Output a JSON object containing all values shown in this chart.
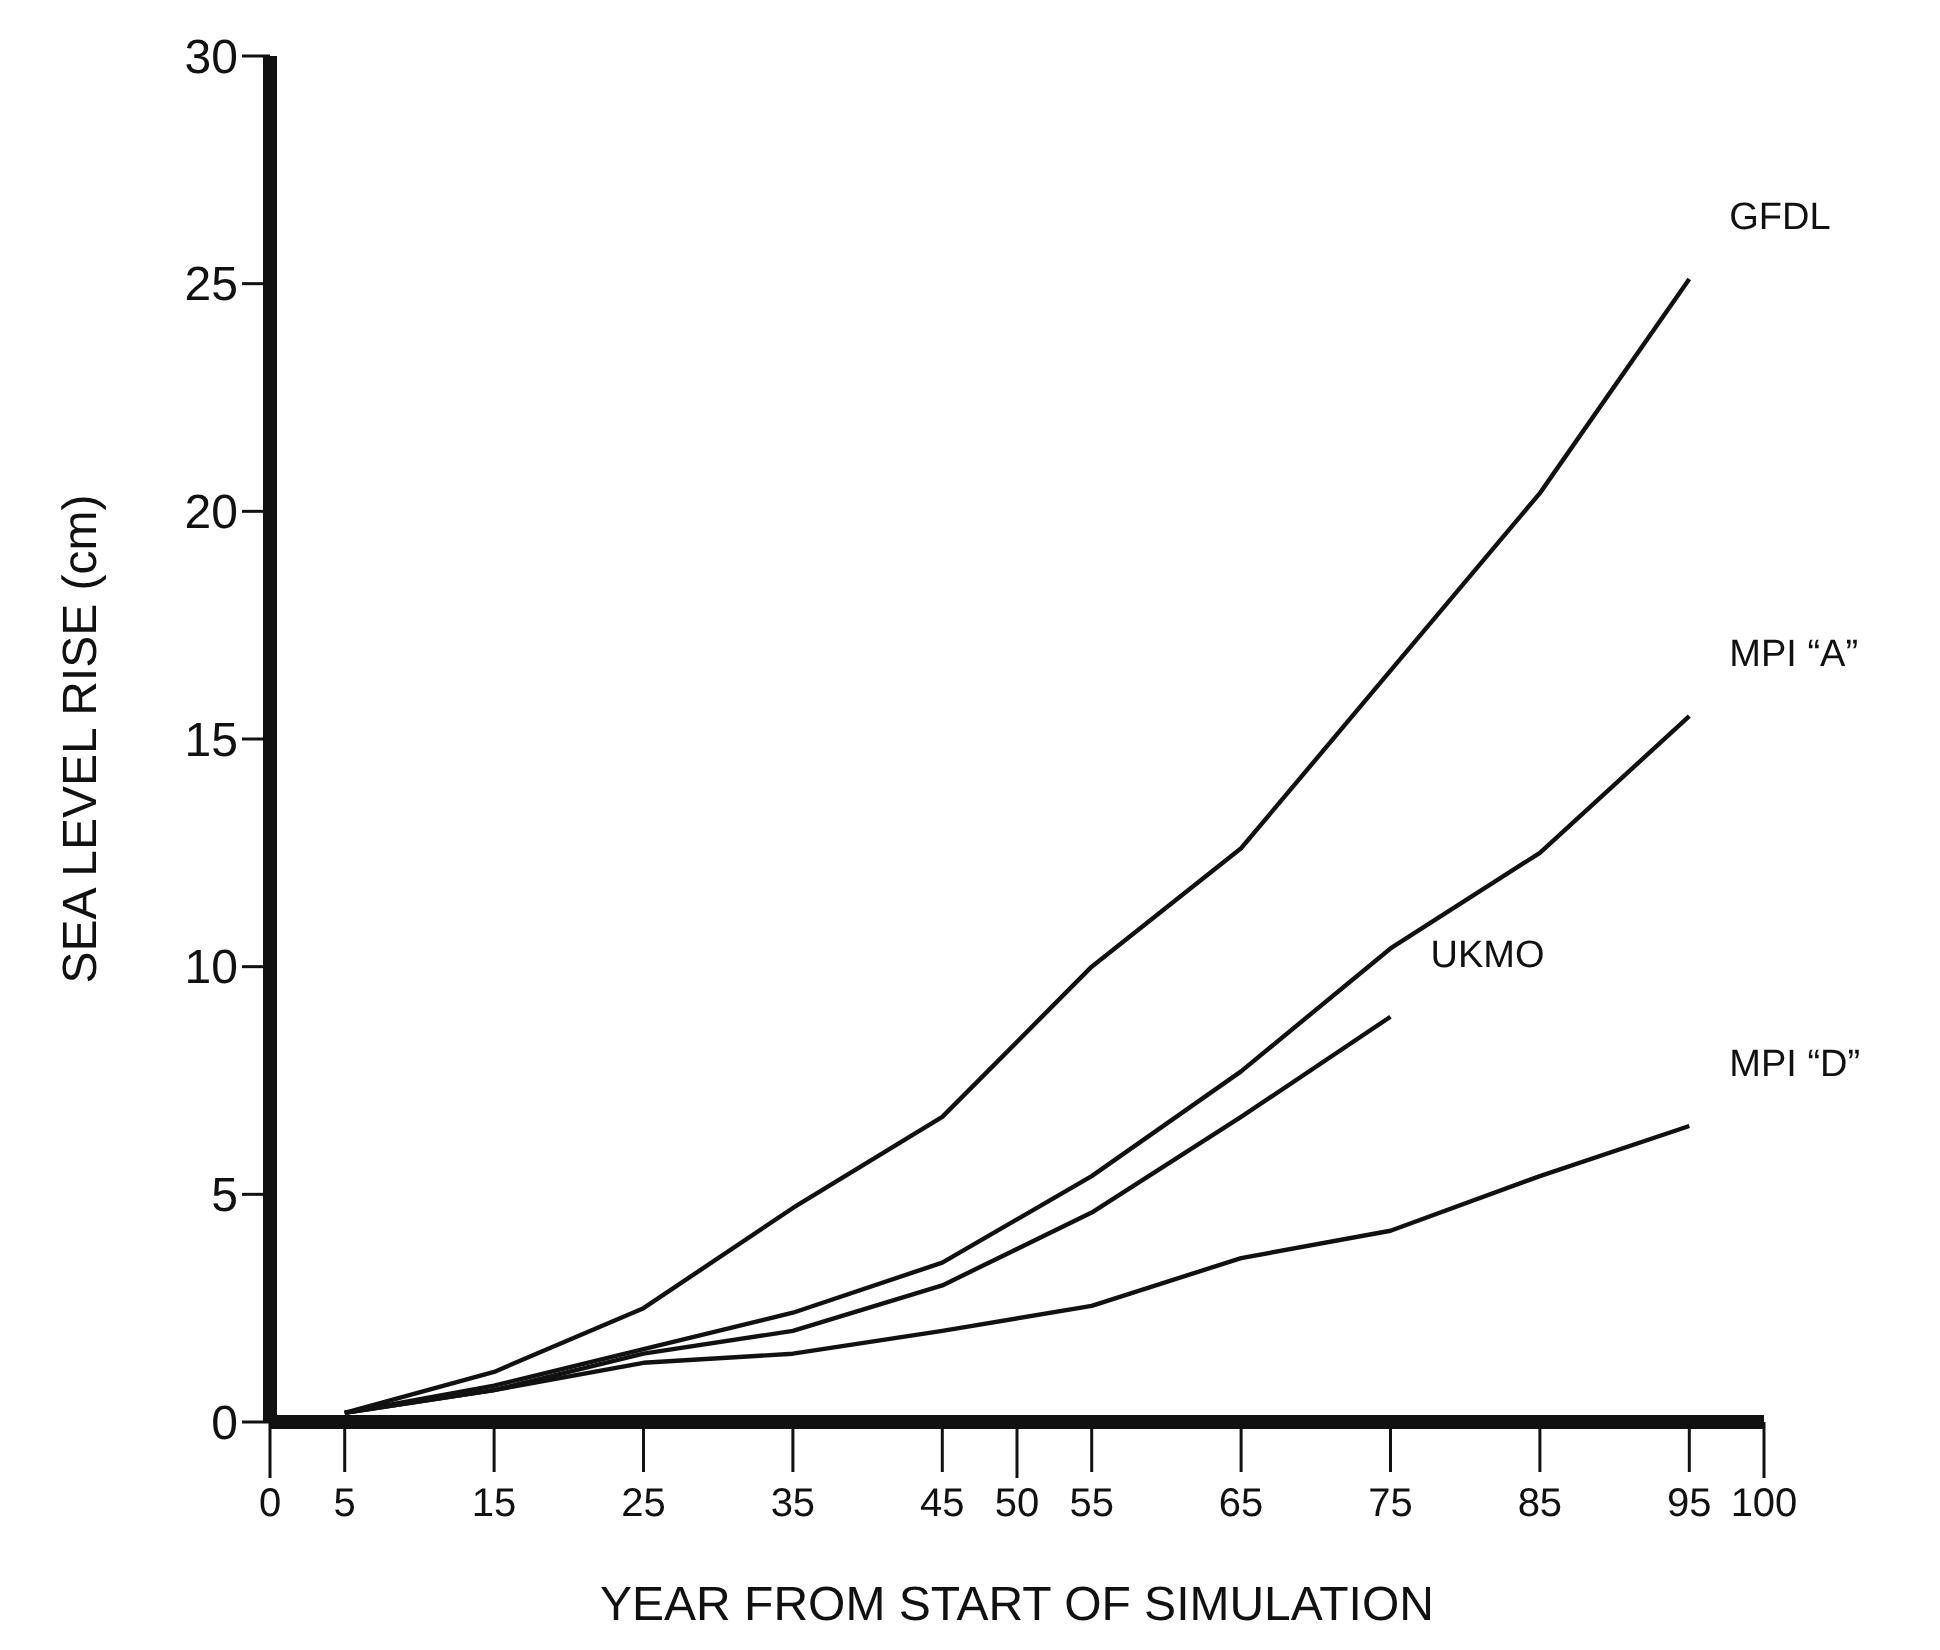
{
  "chart_data": {
    "type": "line",
    "xlabel": "YEAR FROM START OF SIMULATION",
    "ylabel": "SEA LEVEL RISE (cm)",
    "xlim": [
      0,
      100
    ],
    "ylim": [
      0,
      30
    ],
    "xticks": [
      0,
      5,
      15,
      25,
      35,
      45,
      50,
      55,
      65,
      75,
      85,
      95,
      100
    ],
    "yticks": [
      0,
      5,
      10,
      15,
      20,
      25,
      30
    ],
    "grid": false,
    "marker": "none",
    "line_style": "solid",
    "series": [
      {
        "name": "GFDL",
        "color": "#111111",
        "x": [
          5,
          15,
          25,
          35,
          45,
          55,
          65,
          75,
          85,
          95
        ],
        "values": [
          0.2,
          1.1,
          2.5,
          4.7,
          6.7,
          10.0,
          12.6,
          16.5,
          20.4,
          25.1
        ]
      },
      {
        "name": "MPI “A”",
        "color": "#111111",
        "x": [
          5,
          15,
          25,
          35,
          45,
          55,
          65,
          75,
          85,
          95
        ],
        "values": [
          0.2,
          0.8,
          1.6,
          2.4,
          3.5,
          5.4,
          7.7,
          10.4,
          12.5,
          15.5
        ]
      },
      {
        "name": "UKMO",
        "color": "#111111",
        "x": [
          5,
          15,
          25,
          35,
          45,
          55,
          65,
          75
        ],
        "values": [
          0.2,
          0.7,
          1.5,
          2.0,
          3.0,
          4.6,
          6.7,
          8.9
        ]
      },
      {
        "name": "MPI “D”",
        "color": "#111111",
        "x": [
          5,
          15,
          25,
          35,
          45,
          55,
          65,
          75,
          85,
          95
        ],
        "values": [
          0.2,
          0.7,
          1.3,
          1.5,
          2.0,
          2.55,
          3.6,
          4.2,
          5.4,
          6.5
        ]
      }
    ]
  }
}
